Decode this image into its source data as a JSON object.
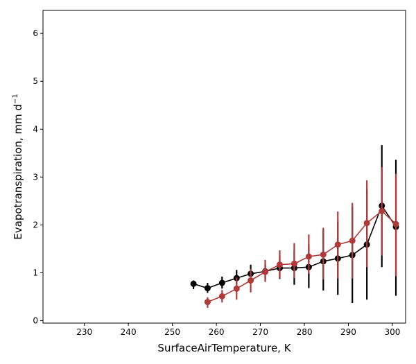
{
  "chart_data": {
    "type": "line",
    "title": "",
    "xlabel": "SurfaceAirTemperature,  K",
    "ylabel": "Evapotranspiration,  mm d",
    "ylabel_sup": "−1",
    "xlim": [
      220.6,
      303.0
    ],
    "ylim": [
      -0.05,
      6.48
    ],
    "xticks": [
      230,
      240,
      250,
      260,
      270,
      280,
      290,
      300
    ],
    "yticks": [
      0,
      1,
      2,
      3,
      4,
      5,
      6
    ],
    "grid": false,
    "series": [
      {
        "name": "black",
        "color": "#000000",
        "x": [
          254.8,
          258.0,
          261.3,
          264.6,
          267.8,
          271.1,
          274.4,
          277.7,
          281.0,
          284.3,
          287.6,
          290.9,
          294.2,
          297.6,
          300.8
        ],
        "y": [
          0.77,
          0.68,
          0.79,
          0.89,
          0.98,
          1.03,
          1.1,
          1.1,
          1.12,
          1.24,
          1.3,
          1.37,
          1.59,
          2.4,
          1.96
        ],
        "err_low": [
          0.66,
          0.58,
          0.67,
          0.75,
          0.83,
          0.86,
          0.87,
          0.75,
          0.68,
          0.63,
          0.54,
          0.37,
          0.44,
          1.12,
          0.52
        ],
        "err_high": [
          0.84,
          0.79,
          0.92,
          1.06,
          1.17,
          1.17,
          1.35,
          1.47,
          1.59,
          1.9,
          2.08,
          2.38,
          2.75,
          3.67,
          3.36
        ]
      },
      {
        "name": "red",
        "color": "#b03a3a",
        "x": [
          258.0,
          261.3,
          264.6,
          267.8,
          271.1,
          274.4,
          277.7,
          281.0,
          284.3,
          287.6,
          290.9,
          294.2,
          297.6,
          300.8
        ],
        "y": [
          0.39,
          0.51,
          0.67,
          0.84,
          1.02,
          1.17,
          1.19,
          1.34,
          1.38,
          1.59,
          1.67,
          2.04,
          2.29,
          2.02
        ],
        "err_low": [
          0.27,
          0.38,
          0.44,
          0.59,
          0.81,
          0.88,
          0.89,
          0.98,
          0.86,
          0.88,
          0.88,
          1.12,
          1.36,
          0.93
        ],
        "err_high": [
          0.49,
          0.64,
          0.9,
          1.08,
          1.27,
          1.47,
          1.62,
          1.8,
          1.94,
          2.28,
          2.46,
          2.93,
          3.21,
          3.07
        ]
      }
    ]
  }
}
